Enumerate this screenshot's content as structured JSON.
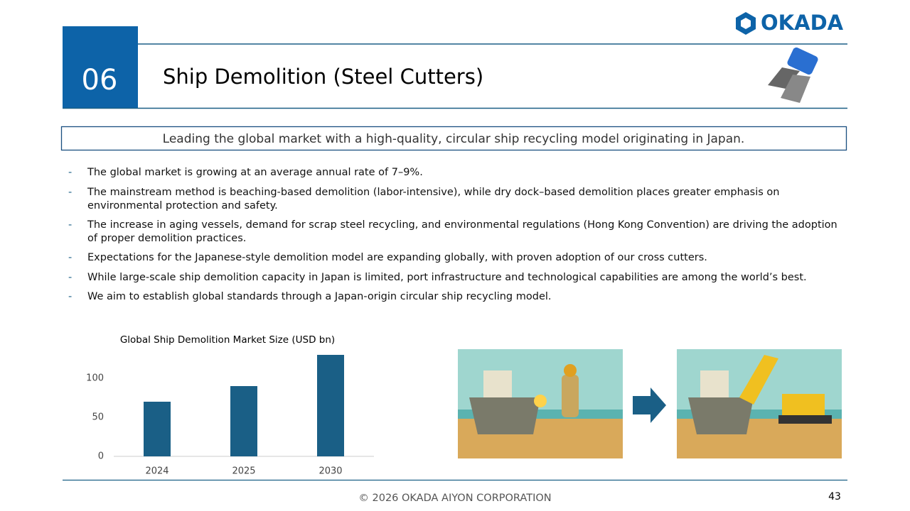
{
  "header": {
    "number": "06",
    "title": "Ship Demolition (Steel Cutters)",
    "logo": "OKADA"
  },
  "banner": "Leading the global market with a high-quality, circular ship recycling model originating in Japan.",
  "bullets": [
    "The global market is growing at an average annual rate of 7–9%.",
    "The mainstream method is beaching-based demolition (labor-intensive), while dry dock–based demolition places greater emphasis on environmental protection and safety.",
    "The increase in aging vessels, demand for scrap steel recycling, and environmental regulations (Hong Kong Convention) are driving the adoption of proper demolition practices.",
    "Expectations for the Japanese-style demolition model are expanding globally, with proven adoption of our cross cutters.",
    "While large-scale ship demolition capacity in Japan is limited, port infrastructure and technological capabilities are among the world’s best.",
    "We aim to establish global standards through a Japan-origin circular ship recycling model."
  ],
  "chart_data": {
    "type": "bar",
    "title": "Global Ship Demolition Market Size (USD bn)",
    "categories": [
      "2024",
      "2025",
      "2030"
    ],
    "values": [
      70,
      90,
      130
    ],
    "color": "#1a5f86",
    "ylim": [
      0,
      140
    ],
    "yticks": [
      0,
      50,
      100
    ],
    "grid": false
  },
  "footer": {
    "copyright": "© 2026 OKADA AIYON CORPORATION",
    "page": "43"
  }
}
